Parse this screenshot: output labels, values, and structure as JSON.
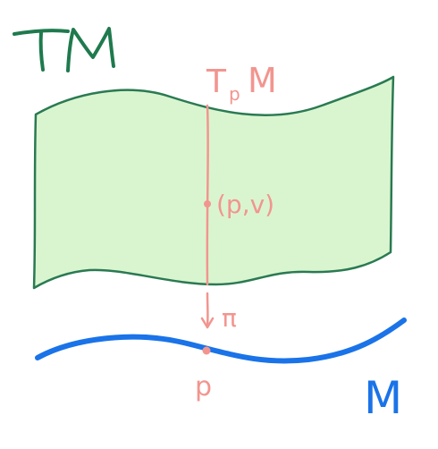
{
  "labels": {
    "bundle": "TM",
    "fiber_T": "T",
    "fiber_sub": "p",
    "fiber_M": "M",
    "point_in_bundle": "(p,v)",
    "projection": "π",
    "base_point": "p",
    "base": "M"
  },
  "colors": {
    "bundle_fill": "#d9f5cf",
    "bundle_stroke": "#2a7a52",
    "bundle_label": "#1f7a4e",
    "fiber": "#f2958f",
    "base_curve": "#1a73e8",
    "base_label": "#1a73e8"
  },
  "icons": {
    "projection_arrow": "down-arrow-icon"
  }
}
